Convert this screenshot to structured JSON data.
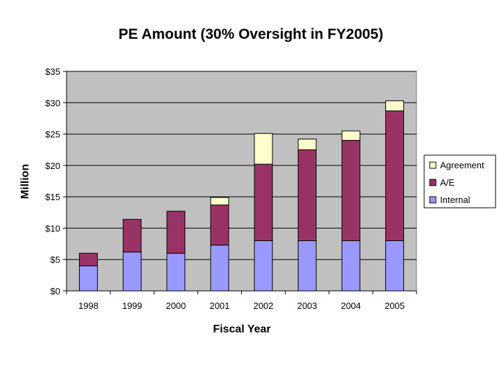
{
  "chart_data": {
    "type": "bar",
    "stacked": true,
    "title": "PE Amount (30% Oversight in FY2005)",
    "xlabel": "Fiscal Year",
    "ylabel": "Million",
    "ylim": [
      0,
      35
    ],
    "ytick_step": 5,
    "ytick_labels": [
      "$0",
      "$5",
      "$10",
      "$15",
      "$20",
      "$25",
      "$30",
      "$35"
    ],
    "grid": true,
    "legend_position": "right",
    "categories": [
      "1998",
      "1999",
      "2000",
      "2001",
      "2002",
      "2003",
      "2004",
      "2005"
    ],
    "series": [
      {
        "name": "Internal",
        "color": "#9999ff",
        "values": [
          4.0,
          6.2,
          6.0,
          7.3,
          8.0,
          8.0,
          8.0,
          8.0
        ]
      },
      {
        "name": "A/E",
        "color": "#993366",
        "values": [
          2.0,
          5.2,
          6.7,
          6.4,
          12.2,
          14.5,
          16.0,
          20.7
        ]
      },
      {
        "name": "Agreement",
        "color": "#ffffcc",
        "values": [
          0.0,
          0.0,
          0.0,
          1.2,
          4.9,
          1.7,
          1.5,
          1.6
        ]
      }
    ],
    "plot_background": "#c0c0c0",
    "legend_order": [
      "Agreement",
      "A/E",
      "Internal"
    ]
  }
}
